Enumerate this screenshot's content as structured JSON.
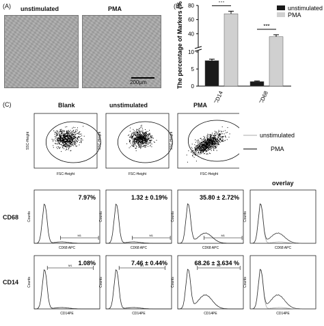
{
  "panel_labels": {
    "a": "(A)",
    "b": "(B)",
    "c": "(C)"
  },
  "panel_a": {
    "left_title": "unstimulated",
    "right_title": "PMA",
    "scale_bar": "200μm"
  },
  "chart_data": {
    "type": "bar",
    "ylabel": "The percentage of Markers (%)",
    "categories": [
      "CD14",
      "CD68"
    ],
    "series": [
      {
        "name": "unstimulated",
        "values": [
          7.46,
          1.32
        ],
        "errors": [
          0.44,
          0.19
        ],
        "color": "#1a1a1a"
      },
      {
        "name": "PMA",
        "values": [
          68.26,
          35.8
        ],
        "errors": [
          3.634,
          2.72
        ],
        "color": "#d0d0d0"
      }
    ],
    "y_ticks": [
      "0",
      "5",
      "10",
      "40",
      "60",
      "80"
    ],
    "y_break": [
      10,
      20
    ],
    "ylim": [
      0,
      80
    ],
    "significance": [
      "***",
      "***"
    ],
    "legend_position": "top-right"
  },
  "panel_c": {
    "col_titles": [
      "Blank",
      "unstimulated",
      "PMA"
    ],
    "legend": [
      "unstimulated",
      "PMA"
    ],
    "row_labels": [
      "CD68",
      "CD14"
    ],
    "overlay_title": "overlay",
    "scatter_axes": {
      "x": "FSC-Height",
      "y": "SSC-Height"
    },
    "cd68_values": [
      "7.97%",
      "1.32 ± 0.19%",
      "35.80 ± 2.72%"
    ],
    "cd14_values": [
      "1.08%",
      "7.46 ± 0.44%",
      "68.26 ± 3.634 %"
    ],
    "cd68_axis": "CD68 APC",
    "cd14_axis": "CD14PE",
    "counts_label": "Counts",
    "gate": "M1"
  }
}
